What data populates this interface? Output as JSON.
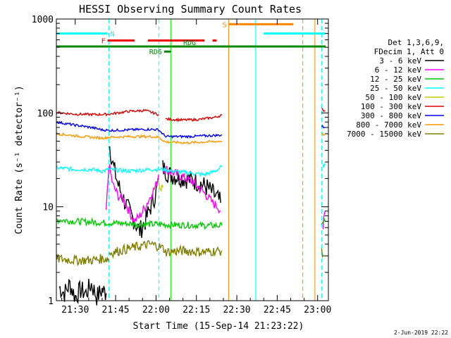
{
  "chart_data": {
    "type": "line",
    "title": "HESSI Observing Summary Count Rates",
    "xlabel": "Start Time (15-Sep-14 21:23:22)",
    "ylabel": "Count Rate (s⁻¹ detector⁻¹)",
    "ylog": true,
    "ylim": [
      1,
      1000
    ],
    "xlim_minutes_since_2130": [
      -7.0,
      94.0
    ],
    "x_ticks": [
      "21:30",
      "21:45",
      "22:00",
      "22:15",
      "22:30",
      "22:45",
      "23:00"
    ],
    "y_ticks": [
      "1",
      "10",
      "100",
      "1000"
    ],
    "legend_header": [
      "Det 1,3,6,9,",
      "FDecim 1, Att 0"
    ],
    "footer_date": "2-Jun-2019 22:22",
    "series": [
      {
        "name": "3 - 6 keV",
        "color": "#000000",
        "segments": [
          {
            "x": [
              -6,
              -4,
              -2,
              0,
              2,
              4,
              6,
              8,
              10,
              11.5
            ],
            "y": [
              1.4,
              1.2,
              1.5,
              1.1,
              1.3,
              1.2,
              1.5,
              1.1,
              1.3,
              1.2
            ]
          },
          {
            "x": [
              12.5,
              14,
              16,
              18,
              20,
              22,
              24,
              26,
              28,
              30,
              31
            ],
            "y": [
              50,
              28,
              17,
              12,
              9,
              7,
              5.5,
              7,
              10,
              14,
              20
            ]
          },
          {
            "x": [
              32.5,
              35,
              38,
              41,
              44,
              46,
              49,
              51,
              53,
              54
            ],
            "y": [
              26,
              22,
              21,
              20,
              19,
              18,
              16,
              14,
              12,
              11
            ]
          }
        ]
      },
      {
        "name": "6 - 12 keV",
        "color": "#ff00ff",
        "segments": [
          {
            "x": [
              11.5,
              12.5,
              14,
              16,
              18,
              20,
              22,
              24,
              26,
              28,
              30,
              31
            ],
            "y": [
              9,
              28,
              17,
              13,
              12,
              9,
              7,
              8,
              10,
              13,
              17,
              22
            ]
          },
          {
            "x": [
              32.5,
              35,
              38,
              41,
              44,
              46,
              49,
              51,
              53,
              54
            ],
            "y": [
              26,
              24,
              22,
              20,
              18,
              16,
              13,
              11,
              10,
              9
            ]
          },
          {
            "x": [
              92,
              92.8
            ],
            "y": [
              6,
              9
            ]
          }
        ]
      },
      {
        "name": "12 - 25 keV",
        "color": "#00cc00",
        "segments": [
          {
            "x": [
              -7,
              0,
              10,
              20,
              30,
              40,
              50,
              54.5
            ],
            "y": [
              7.3,
              7.0,
              6.8,
              6.6,
              6.5,
              6.4,
              6.3,
              6.3
            ]
          },
          {
            "x": [
              91.5,
              92.8
            ],
            "y": [
              7.0,
              7.0
            ]
          }
        ]
      },
      {
        "name": "25 - 50 keV",
        "color": "#00ffff",
        "segments": [
          {
            "x": [
              -7,
              0,
              6,
              10,
              12.5,
              20,
              28,
              33,
              36,
              42,
              48,
              52,
              54.5
            ],
            "y": [
              26,
              25,
              25,
              24,
              25,
              24,
              25,
              25,
              24,
              23,
              22,
              24,
              27
            ]
          },
          {
            "x": [
              92,
              92.8
            ],
            "y": [
              27,
              28
            ]
          }
        ]
      },
      {
        "name": "50 - 100 keV",
        "color": "#c8c800",
        "segments": [
          {
            "x": [
              31,
              32.5
            ],
            "y": [
              17,
              16
            ]
          }
        ]
      },
      {
        "name": "100 - 300 keV",
        "color": "#dd0000",
        "segments": [
          {
            "x": [
              -7,
              0,
              8,
              12.5,
              20,
              26,
              31
            ],
            "y": [
              101,
              97,
              96,
              97,
              104,
              106,
              96
            ]
          },
          {
            "x": [
              33.5,
              40,
              46,
              52,
              54.5
            ],
            "y": [
              86,
              84,
              85,
              90,
              95
            ]
          },
          {
            "x": [
              91.5,
              92.8
            ],
            "y": [
              110,
              104
            ]
          }
        ]
      },
      {
        "name": "300 - 800 keV",
        "color": "#0000ff",
        "segments": [
          {
            "x": [
              -7,
              0,
              6,
              10,
              12.5,
              20,
              28,
              31,
              33.5
            ],
            "y": [
              80,
              74,
              70,
              66,
              65,
              66,
              67,
              66,
              56
            ]
          },
          {
            "x": [
              33.5,
              42,
              48,
              54.5
            ],
            "y": [
              56,
              56,
              57,
              58
            ]
          },
          {
            "x": [
              91.5,
              92.8
            ],
            "y": [
              72,
              70
            ]
          }
        ]
      },
      {
        "name": "800 - 7000 keV",
        "color": "#ff9900",
        "segments": [
          {
            "x": [
              -7,
              0,
              6,
              10,
              12.5,
              20,
              28,
              31,
              33.5
            ],
            "y": [
              60,
              57,
              55,
              54,
              55,
              56,
              56,
              55,
              49
            ]
          },
          {
            "x": [
              33.5,
              42,
              48,
              54.5
            ],
            "y": [
              49,
              48,
              49,
              50
            ]
          },
          {
            "x": [
              91.5,
              92.8
            ],
            "y": [
              60,
              58
            ]
          }
        ]
      },
      {
        "name": "7000 - 15000 keV",
        "color": "#808000",
        "segments": [
          {
            "x": [
              -7,
              0,
              6,
              10,
              12.5
            ],
            "y": [
              2.8,
              2.7,
              2.7,
              2.8,
              2.8
            ]
          },
          {
            "x": [
              12.5,
              20,
              28,
              31,
              33.5
            ],
            "y": [
              3.2,
              3.6,
              4.0,
              3.8,
              3.5
            ]
          },
          {
            "x": [
              33.5,
              40,
              48,
              54.5
            ],
            "y": [
              3.3,
              3.4,
              3.3,
              3.4
            ]
          },
          {
            "x": [
              91.5,
              92.8
            ],
            "y": [
              3.2,
              3.0
            ]
          }
        ]
      }
    ],
    "state_bars": [
      {
        "label": "N",
        "color": "#00ffff",
        "level": 700,
        "x": [
          -7,
          12
        ]
      },
      {
        "label": "",
        "color": "#00ffff",
        "level": 700,
        "x": [
          70,
          92.8
        ]
      },
      {
        "label": "F",
        "color": "#ee0000",
        "level": 590,
        "x": [
          12,
          22
        ]
      },
      {
        "label": "",
        "color": "#ee0000",
        "level": 590,
        "x": [
          27,
          48
        ]
      },
      {
        "label": "",
        "color": "#ee0000",
        "level": 590,
        "x": [
          51,
          52.5
        ]
      },
      {
        "label": "S",
        "color": "#ff8800",
        "level": 880,
        "x": [
          57,
          81
        ]
      },
      {
        "label": "RD6",
        "color": "#008800",
        "level": 450,
        "x": [
          33,
          35.5
        ]
      },
      {
        "label": "RDG",
        "color": "#008800",
        "level": 510,
        "x": [
          -7,
          93
        ]
      }
    ],
    "vertical_markers": [
      {
        "x": -7,
        "color": "#00ffff",
        "dashed": false
      },
      {
        "x": 12.5,
        "color": "#00ffff",
        "dashed": true
      },
      {
        "x": 31,
        "color": "#00ffff",
        "dashed": true
      },
      {
        "x": 35.5,
        "color": "#00ff00",
        "dashed": false
      },
      {
        "x": 57,
        "color": "#ff8800",
        "dashed": false
      },
      {
        "x": 67,
        "color": "#00ffff",
        "dashed": false
      },
      {
        "x": 84.5,
        "color": "#ff8800",
        "dashed": true
      },
      {
        "x": 89,
        "color": "#ff8800",
        "dashed": false
      },
      {
        "x": 91.5,
        "color": "#00ffff",
        "dashed": true
      }
    ]
  }
}
